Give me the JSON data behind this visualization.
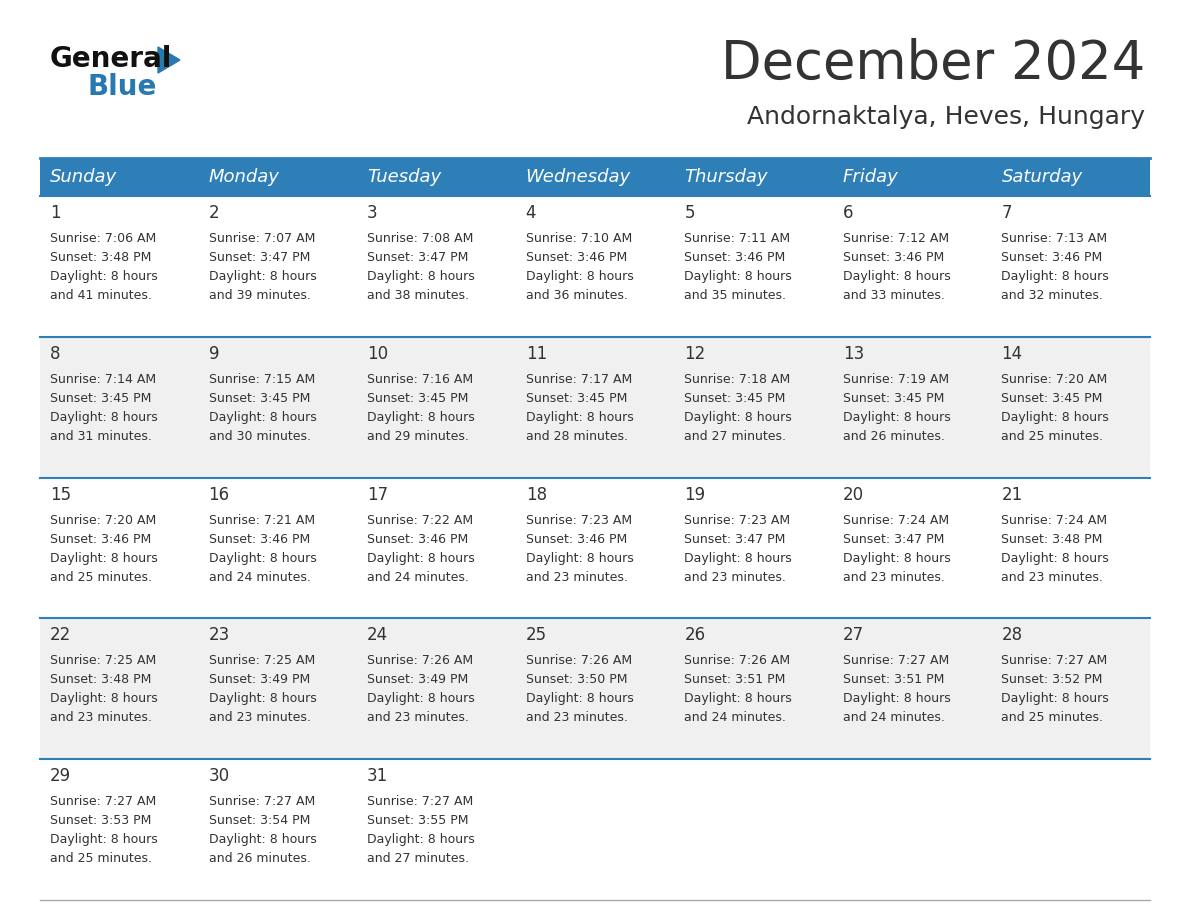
{
  "title": "December 2024",
  "subtitle": "Andornaktalya, Heves, Hungary",
  "header_color": "#2E7EB8",
  "header_text_color": "#FFFFFF",
  "day_names": [
    "Sunday",
    "Monday",
    "Tuesday",
    "Wednesday",
    "Thursday",
    "Friday",
    "Saturday"
  ],
  "days": [
    {
      "day": 1,
      "col": 0,
      "row": 0,
      "sunrise": "7:06 AM",
      "sunset": "3:48 PM",
      "daylight_hours": 8,
      "daylight_minutes": 41
    },
    {
      "day": 2,
      "col": 1,
      "row": 0,
      "sunrise": "7:07 AM",
      "sunset": "3:47 PM",
      "daylight_hours": 8,
      "daylight_minutes": 39
    },
    {
      "day": 3,
      "col": 2,
      "row": 0,
      "sunrise": "7:08 AM",
      "sunset": "3:47 PM",
      "daylight_hours": 8,
      "daylight_minutes": 38
    },
    {
      "day": 4,
      "col": 3,
      "row": 0,
      "sunrise": "7:10 AM",
      "sunset": "3:46 PM",
      "daylight_hours": 8,
      "daylight_minutes": 36
    },
    {
      "day": 5,
      "col": 4,
      "row": 0,
      "sunrise": "7:11 AM",
      "sunset": "3:46 PM",
      "daylight_hours": 8,
      "daylight_minutes": 35
    },
    {
      "day": 6,
      "col": 5,
      "row": 0,
      "sunrise": "7:12 AM",
      "sunset": "3:46 PM",
      "daylight_hours": 8,
      "daylight_minutes": 33
    },
    {
      "day": 7,
      "col": 6,
      "row": 0,
      "sunrise": "7:13 AM",
      "sunset": "3:46 PM",
      "daylight_hours": 8,
      "daylight_minutes": 32
    },
    {
      "day": 8,
      "col": 0,
      "row": 1,
      "sunrise": "7:14 AM",
      "sunset": "3:45 PM",
      "daylight_hours": 8,
      "daylight_minutes": 31
    },
    {
      "day": 9,
      "col": 1,
      "row": 1,
      "sunrise": "7:15 AM",
      "sunset": "3:45 PM",
      "daylight_hours": 8,
      "daylight_minutes": 30
    },
    {
      "day": 10,
      "col": 2,
      "row": 1,
      "sunrise": "7:16 AM",
      "sunset": "3:45 PM",
      "daylight_hours": 8,
      "daylight_minutes": 29
    },
    {
      "day": 11,
      "col": 3,
      "row": 1,
      "sunrise": "7:17 AM",
      "sunset": "3:45 PM",
      "daylight_hours": 8,
      "daylight_minutes": 28
    },
    {
      "day": 12,
      "col": 4,
      "row": 1,
      "sunrise": "7:18 AM",
      "sunset": "3:45 PM",
      "daylight_hours": 8,
      "daylight_minutes": 27
    },
    {
      "day": 13,
      "col": 5,
      "row": 1,
      "sunrise": "7:19 AM",
      "sunset": "3:45 PM",
      "daylight_hours": 8,
      "daylight_minutes": 26
    },
    {
      "day": 14,
      "col": 6,
      "row": 1,
      "sunrise": "7:20 AM",
      "sunset": "3:45 PM",
      "daylight_hours": 8,
      "daylight_minutes": 25
    },
    {
      "day": 15,
      "col": 0,
      "row": 2,
      "sunrise": "7:20 AM",
      "sunset": "3:46 PM",
      "daylight_hours": 8,
      "daylight_minutes": 25
    },
    {
      "day": 16,
      "col": 1,
      "row": 2,
      "sunrise": "7:21 AM",
      "sunset": "3:46 PM",
      "daylight_hours": 8,
      "daylight_minutes": 24
    },
    {
      "day": 17,
      "col": 2,
      "row": 2,
      "sunrise": "7:22 AM",
      "sunset": "3:46 PM",
      "daylight_hours": 8,
      "daylight_minutes": 24
    },
    {
      "day": 18,
      "col": 3,
      "row": 2,
      "sunrise": "7:23 AM",
      "sunset": "3:46 PM",
      "daylight_hours": 8,
      "daylight_minutes": 23
    },
    {
      "day": 19,
      "col": 4,
      "row": 2,
      "sunrise": "7:23 AM",
      "sunset": "3:47 PM",
      "daylight_hours": 8,
      "daylight_minutes": 23
    },
    {
      "day": 20,
      "col": 5,
      "row": 2,
      "sunrise": "7:24 AM",
      "sunset": "3:47 PM",
      "daylight_hours": 8,
      "daylight_minutes": 23
    },
    {
      "day": 21,
      "col": 6,
      "row": 2,
      "sunrise": "7:24 AM",
      "sunset": "3:48 PM",
      "daylight_hours": 8,
      "daylight_minutes": 23
    },
    {
      "day": 22,
      "col": 0,
      "row": 3,
      "sunrise": "7:25 AM",
      "sunset": "3:48 PM",
      "daylight_hours": 8,
      "daylight_minutes": 23
    },
    {
      "day": 23,
      "col": 1,
      "row": 3,
      "sunrise": "7:25 AM",
      "sunset": "3:49 PM",
      "daylight_hours": 8,
      "daylight_minutes": 23
    },
    {
      "day": 24,
      "col": 2,
      "row": 3,
      "sunrise": "7:26 AM",
      "sunset": "3:49 PM",
      "daylight_hours": 8,
      "daylight_minutes": 23
    },
    {
      "day": 25,
      "col": 3,
      "row": 3,
      "sunrise": "7:26 AM",
      "sunset": "3:50 PM",
      "daylight_hours": 8,
      "daylight_minutes": 23
    },
    {
      "day": 26,
      "col": 4,
      "row": 3,
      "sunrise": "7:26 AM",
      "sunset": "3:51 PM",
      "daylight_hours": 8,
      "daylight_minutes": 24
    },
    {
      "day": 27,
      "col": 5,
      "row": 3,
      "sunrise": "7:27 AM",
      "sunset": "3:51 PM",
      "daylight_hours": 8,
      "daylight_minutes": 24
    },
    {
      "day": 28,
      "col": 6,
      "row": 3,
      "sunrise": "7:27 AM",
      "sunset": "3:52 PM",
      "daylight_hours": 8,
      "daylight_minutes": 25
    },
    {
      "day": 29,
      "col": 0,
      "row": 4,
      "sunrise": "7:27 AM",
      "sunset": "3:53 PM",
      "daylight_hours": 8,
      "daylight_minutes": 25
    },
    {
      "day": 30,
      "col": 1,
      "row": 4,
      "sunrise": "7:27 AM",
      "sunset": "3:54 PM",
      "daylight_hours": 8,
      "daylight_minutes": 26
    },
    {
      "day": 31,
      "col": 2,
      "row": 4,
      "sunrise": "7:27 AM",
      "sunset": "3:55 PM",
      "daylight_hours": 8,
      "daylight_minutes": 27
    }
  ],
  "num_rows": 5,
  "cell_bg_even": "#FFFFFF",
  "cell_bg_odd": "#F0F0F0",
  "grid_line_color": "#2E7EB8",
  "row_sep_color": "#2E7EB8",
  "bottom_border_color": "#AAAAAA",
  "text_color": "#333333",
  "logo_general_color": "#111111",
  "logo_blue_color": "#2779B0",
  "title_fontsize": 38,
  "subtitle_fontsize": 18,
  "day_name_fontsize": 13,
  "day_number_fontsize": 12,
  "cell_text_fontsize": 9
}
